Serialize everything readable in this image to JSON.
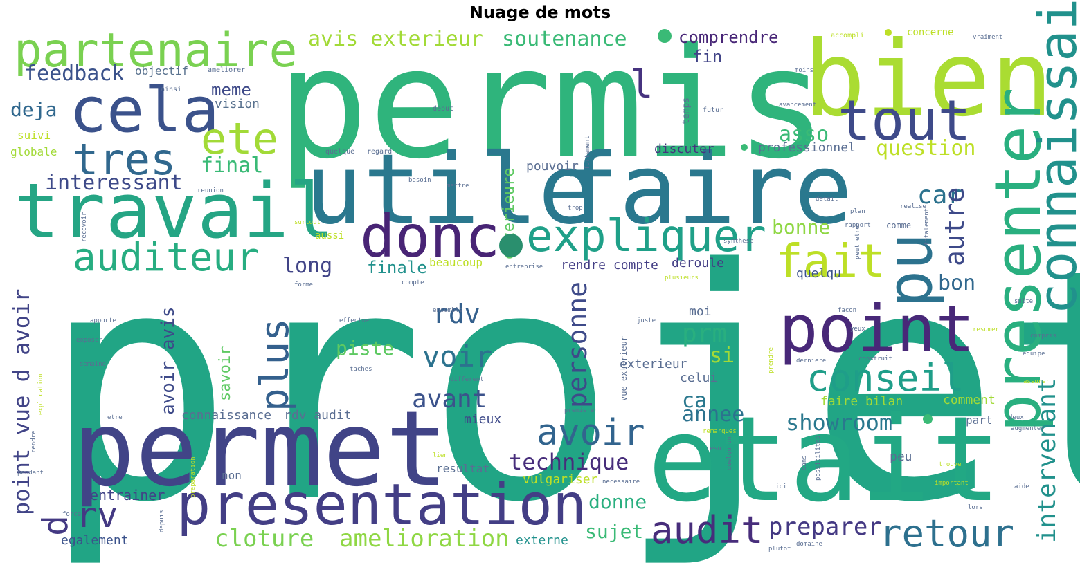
{
  "title": "Nuage de mots",
  "words": [
    {
      "text": "projet",
      "color": "#21a585"
    },
    {
      "text": "permis",
      "color": "#2fb47c"
    },
    {
      "text": "bien",
      "color": "#aadc32"
    },
    {
      "text": "utile",
      "color": "#2a788e"
    },
    {
      "text": "faire",
      "color": "#2a788e"
    },
    {
      "text": "travail",
      "color": "#25a584"
    },
    {
      "text": "permet",
      "color": "#414487"
    },
    {
      "text": "etait",
      "color": "#22a884"
    },
    {
      "text": "presentation",
      "color": "#433e85"
    },
    {
      "text": "cela",
      "color": "#3b528b"
    },
    {
      "text": "partenaire",
      "color": "#7ad151"
    },
    {
      "text": "tout",
      "color": "#3e4a89"
    },
    {
      "text": "presenter",
      "color": "#29af7f"
    },
    {
      "text": "connaissait",
      "color": "#21918c"
    },
    {
      "text": "donc",
      "color": "#482475"
    },
    {
      "text": "point",
      "color": "#482878"
    },
    {
      "text": "pu",
      "color": "#2c728e"
    },
    {
      "text": "expliquer",
      "color": "#1fa088"
    },
    {
      "text": "auditeur",
      "color": "#27ad81"
    },
    {
      "text": "tres",
      "color": "#31688e"
    },
    {
      "text": "ete",
      "color": "#a2da37"
    },
    {
      "text": "fait",
      "color": "#bddf26"
    },
    {
      "text": "conseil",
      "color": "#1f9e89"
    },
    {
      "text": "avoir",
      "color": "#32648e"
    },
    {
      "text": "audit",
      "color": "#472d7b"
    },
    {
      "text": "retour",
      "color": "#2d708e"
    },
    {
      "text": "plus",
      "color": "#34608d"
    },
    {
      "text": "rv",
      "color": "#443983"
    },
    {
      "text": "d",
      "color": "#443983"
    },
    {
      "text": "l",
      "color": "#46337f"
    },
    {
      "text": "feedback",
      "color": "#3b528b"
    },
    {
      "text": "avis exterieur",
      "color": "#a2da37"
    },
    {
      "text": "soutenance",
      "color": "#3aba76"
    },
    {
      "text": "comprendre",
      "color": "#482677"
    },
    {
      "text": "fin",
      "color": "#414487"
    },
    {
      "text": "meme",
      "color": "#3e4a89"
    },
    {
      "text": "vision",
      "color": "#58718e"
    },
    {
      "text": "objectif",
      "color": "#58718e"
    },
    {
      "text": "deja",
      "color": "#31688e"
    },
    {
      "text": "suivi",
      "color": "#bddf26"
    },
    {
      "text": "globale",
      "color": "#a2da37"
    },
    {
      "text": "final",
      "color": "#3aba76"
    },
    {
      "text": "interessant",
      "color": "#3e4a89"
    },
    {
      "text": "question",
      "color": "#bddf26"
    },
    {
      "text": "asso",
      "color": "#3aba76"
    },
    {
      "text": "professionnel",
      "color": "#5a6e92"
    },
    {
      "text": "discuter",
      "color": "#46337f"
    },
    {
      "text": "car",
      "color": "#2c728e"
    },
    {
      "text": "bonne",
      "color": "#8fd744"
    },
    {
      "text": "autre",
      "color": "#3e4a89"
    },
    {
      "text": "long",
      "color": "#414487"
    },
    {
      "text": "finale",
      "color": "#21918c"
    },
    {
      "text": "rendre compte",
      "color": "#433e85"
    },
    {
      "text": "deroule",
      "color": "#433e85"
    },
    {
      "text": "bon",
      "color": "#31688e"
    },
    {
      "text": "quelqu",
      "color": "#3b528b"
    },
    {
      "text": "rdv",
      "color": "#34608d"
    },
    {
      "text": "voir",
      "color": "#2c728e"
    },
    {
      "text": "piste",
      "color": "#5ec962"
    },
    {
      "text": "personne",
      "color": "#3e4a89"
    },
    {
      "text": "prm",
      "color": "#29af7f"
    },
    {
      "text": "si",
      "color": "#a2da37"
    },
    {
      "text": "ca",
      "color": "#2a788e"
    },
    {
      "text": "annee",
      "color": "#2c728e"
    },
    {
      "text": "showroom",
      "color": "#2a788e"
    },
    {
      "text": "avant",
      "color": "#3b528b"
    },
    {
      "text": "technique",
      "color": "#472d7b"
    },
    {
      "text": "sujet",
      "color": "#3aba76"
    },
    {
      "text": "preparer",
      "color": "#443983"
    },
    {
      "text": "cloture",
      "color": "#7ad151"
    },
    {
      "text": "amelioration",
      "color": "#8fd744"
    },
    {
      "text": "intervenant",
      "color": "#21918c"
    },
    {
      "text": "point vue d avoir",
      "color": "#414487"
    },
    {
      "text": "avoir avis",
      "color": "#3e4a89"
    },
    {
      "text": "savoir",
      "color": "#5ec962"
    },
    {
      "text": "exterieure",
      "color": "#5ec962"
    },
    {
      "text": "pouvoir",
      "color": "#5a6e92"
    },
    {
      "text": "connaissance",
      "color": "#5a6e92"
    },
    {
      "text": "rdv audit",
      "color": "#5a6e92"
    },
    {
      "text": "mieux",
      "color": "#3e4a89"
    },
    {
      "text": "entrainer",
      "color": "#414487"
    },
    {
      "text": "egalement",
      "color": "#3b528b"
    },
    {
      "text": "vulgariser",
      "color": "#bddf26"
    },
    {
      "text": "donne",
      "color": "#29af7f"
    },
    {
      "text": "resultat",
      "color": "#5a6e92"
    },
    {
      "text": "externe",
      "color": "#21918c"
    },
    {
      "text": "celui",
      "color": "#5a6e92"
    },
    {
      "text": "moi",
      "color": "#5a6e92"
    },
    {
      "text": "exterieur",
      "color": "#5a6e92"
    },
    {
      "text": "faire bilan",
      "color": "#a2da37"
    },
    {
      "text": "comment",
      "color": "#a2da37"
    },
    {
      "text": "part",
      "color": "#5a6e92"
    },
    {
      "text": "peu",
      "color": "#5a6e92"
    },
    {
      "text": "non",
      "color": "#5a6e92"
    },
    {
      "text": "beaucoup",
      "color": "#bddf26"
    },
    {
      "text": "aussi",
      "color": "#bddf26"
    },
    {
      "text": "concerne",
      "color": "#bddf26"
    },
    {
      "text": "accompli",
      "color": "#bddf26"
    },
    {
      "text": "vraiment",
      "color": "#5a6e92"
    },
    {
      "text": "ameliorer",
      "color": "#5a6e92"
    },
    {
      "text": "ainsi",
      "color": "#5a6e92"
    },
    {
      "text": "temps",
      "color": "#5a6e92"
    },
    {
      "text": "futur",
      "color": "#5a6e92"
    },
    {
      "text": "debut",
      "color": "#5a6e92"
    },
    {
      "text": "avancement",
      "color": "#5a6e92"
    },
    {
      "text": "quelque",
      "color": "#5a6e92"
    },
    {
      "text": "regard",
      "color": "#5a6e92"
    },
    {
      "text": "rapport",
      "color": "#5a6e92"
    },
    {
      "text": "realise",
      "color": "#5a6e92"
    },
    {
      "text": "synthese",
      "color": "#5a6e92"
    },
    {
      "text": "compte",
      "color": "#5a6e92"
    },
    {
      "text": "forme",
      "color": "#5a6e92"
    },
    {
      "text": "plusieurs",
      "color": "#bddf26"
    },
    {
      "text": "facon",
      "color": "#5a6e92"
    },
    {
      "text": "ensemble",
      "color": "#5a6e92"
    },
    {
      "text": "effectue",
      "color": "#5a6e92"
    },
    {
      "text": "apporte",
      "color": "#5a6e92"
    },
    {
      "text": "exposer",
      "color": "#5a6e92"
    },
    {
      "text": "semaine",
      "color": "#5a6e92"
    },
    {
      "text": "taches",
      "color": "#5a6e92"
    },
    {
      "text": "different",
      "color": "#5a6e92"
    },
    {
      "text": "rendre",
      "color": "#5a6e92"
    },
    {
      "text": "pendant",
      "color": "#5a6e92"
    },
    {
      "text": "force",
      "color": "#5a6e92"
    },
    {
      "text": "depuis",
      "color": "#5a6e92"
    },
    {
      "text": "domaine",
      "color": "#5a6e92"
    },
    {
      "text": "plutot",
      "color": "#5a6e92"
    },
    {
      "text": "lors",
      "color": "#5a6e92"
    },
    {
      "text": "aide",
      "color": "#5a6e92"
    },
    {
      "text": "important",
      "color": "#bddf26"
    },
    {
      "text": "trouve",
      "color": "#bddf26"
    },
    {
      "text": "resumer",
      "color": "#bddf26"
    },
    {
      "text": "compris",
      "color": "#5a6e92"
    },
    {
      "text": "equipe",
      "color": "#5a6e92"
    },
    {
      "text": "suite",
      "color": "#5a6e92"
    },
    {
      "text": "juste",
      "color": "#5a6e92"
    },
    {
      "text": "vue exterieur",
      "color": "#5a6e92"
    },
    {
      "text": "construit",
      "color": "#5a6e92"
    },
    {
      "text": "derniere",
      "color": "#5a6e92"
    },
    {
      "text": "remarques",
      "color": "#bddf26"
    },
    {
      "text": "premiere",
      "color": "#5a6e92"
    },
    {
      "text": "necessaire",
      "color": "#5a6e92"
    },
    {
      "text": "deux",
      "color": "#5a6e92"
    },
    {
      "text": "augmenter",
      "color": "#5a6e92"
    },
    {
      "text": "moins",
      "color": "#5a6e92"
    },
    {
      "text": "detail",
      "color": "#5a6e92"
    },
    {
      "text": "totalement",
      "color": "#5a6e92"
    },
    {
      "text": "reunion",
      "color": "#5a6e92"
    },
    {
      "text": "mettre",
      "color": "#5a6e92"
    },
    {
      "text": "besoin",
      "color": "#5a6e92"
    },
    {
      "text": "surtout",
      "color": "#bddf26"
    },
    {
      "text": "comme",
      "color": "#5a6e92"
    },
    {
      "text": "entreprise",
      "color": "#5a6e92"
    },
    {
      "text": "peut etre",
      "color": "#5a6e92"
    },
    {
      "text": "assurer",
      "color": "#bddf26"
    },
    {
      "text": "evite",
      "color": "#5a6e92"
    },
    {
      "text": "explication",
      "color": "#bddf26"
    },
    {
      "text": "possibilites",
      "color": "#5a6e92"
    },
    {
      "text": "sans",
      "color": "#5a6e92"
    },
    {
      "text": "quelqu un",
      "color": "#5a6e92"
    },
    {
      "text": "preparation",
      "color": "#bddf26"
    },
    {
      "text": "resu",
      "color": "#5a6e92"
    },
    {
      "text": "prendre",
      "color": "#bddf26"
    },
    {
      "text": "lien",
      "color": "#bddf26"
    },
    {
      "text": "etre",
      "color": "#5a6e92"
    },
    {
      "text": "recevoir",
      "color": "#5a6e92"
    },
    {
      "text": "trop",
      "color": "#5a6e92"
    },
    {
      "text": "fortement",
      "color": "#5a6e92"
    },
    {
      "text": "plan",
      "color": "#5a6e92"
    },
    {
      "text": "yeux",
      "color": "#5a6e92"
    },
    {
      "text": "ici",
      "color": "#5a6e92"
    }
  ]
}
